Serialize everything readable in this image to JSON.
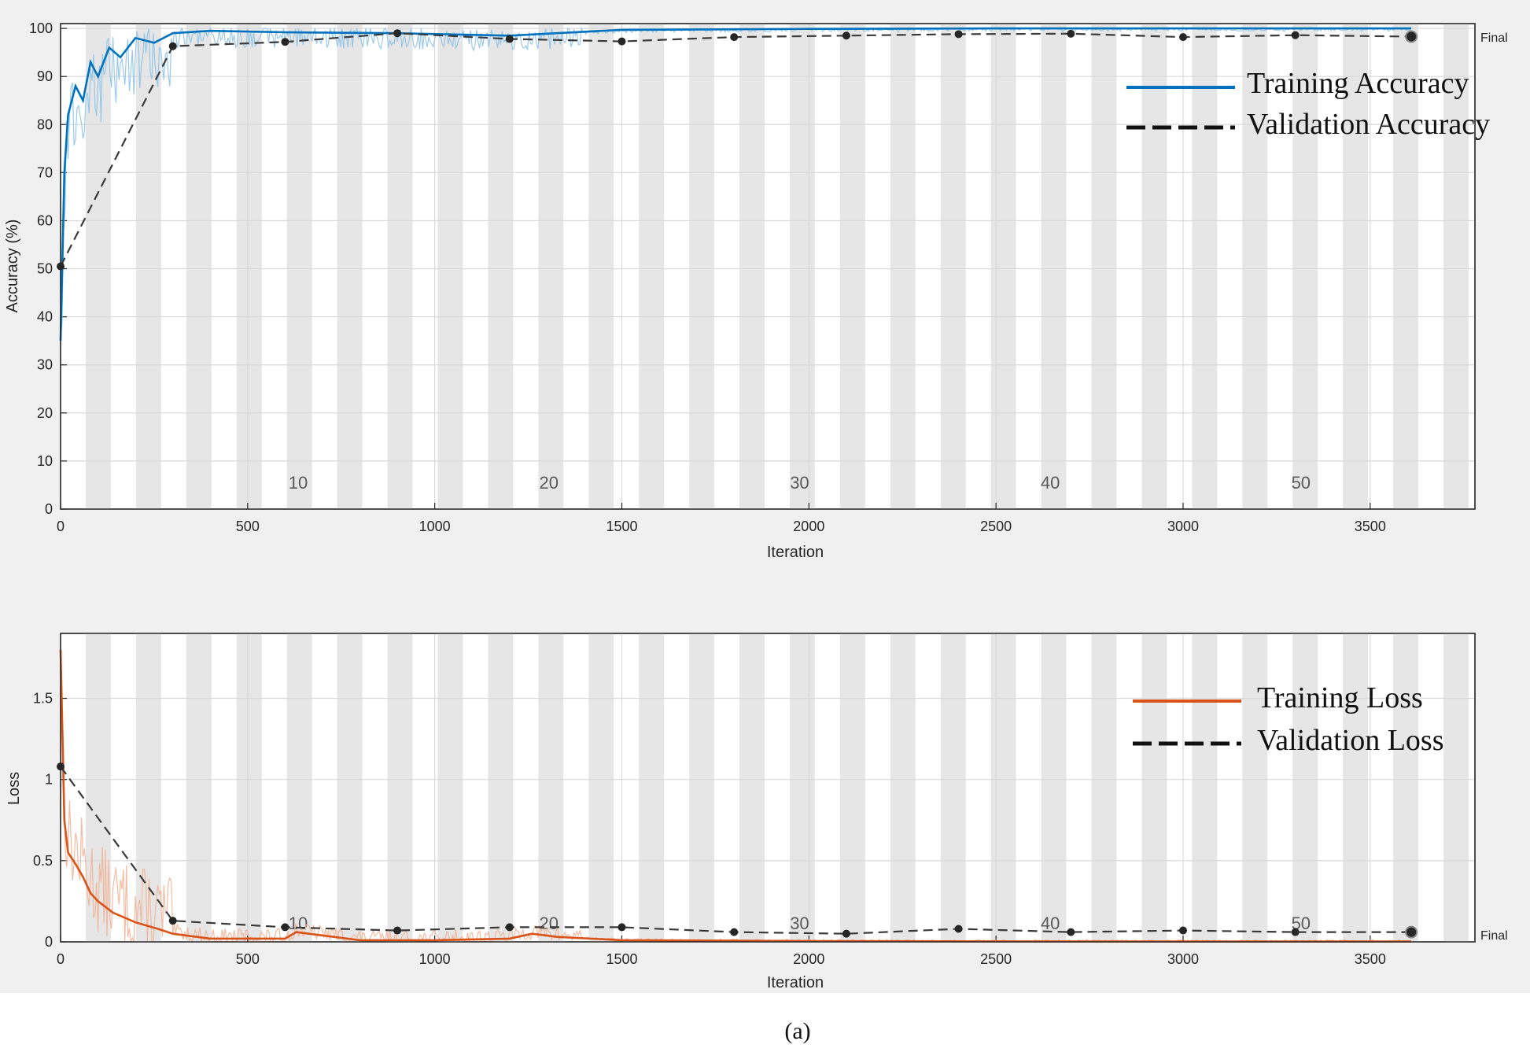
{
  "caption": "(a)",
  "colors": {
    "training_accuracy": "#0072bd",
    "training_accuracy_raw": "#8fc3e8",
    "training_loss": "#d95319",
    "training_loss_raw": "#f2b497",
    "validation": "#3a3a3a",
    "validation_marker": "#262626"
  },
  "chart_data": [
    {
      "type": "line",
      "name": "accuracy-chart",
      "xlabel": "Iteration",
      "ylabel": "Accuracy (%)",
      "xlim": [
        0,
        3780
      ],
      "ylim": [
        0,
        101
      ],
      "xticks": [
        0,
        500,
        1000,
        1500,
        2000,
        2500,
        3000,
        3500
      ],
      "yticks": [
        0,
        10,
        20,
        30,
        40,
        50,
        60,
        70,
        80,
        90,
        100
      ],
      "epoch_labels": [
        {
          "iteration": 635,
          "label": "10"
        },
        {
          "iteration": 1305,
          "label": "20"
        },
        {
          "iteration": 1975,
          "label": "30"
        },
        {
          "iteration": 2645,
          "label": "40"
        },
        {
          "iteration": 3315,
          "label": "50"
        }
      ],
      "epoch_band_period": 67.2,
      "final_label": "Final",
      "final_iteration": 3610,
      "legend": {
        "position": "top-right",
        "entries": [
          "Training Accuracy",
          "Validation Accuracy"
        ]
      },
      "series": [
        {
          "name": "Training Accuracy",
          "style": "solid",
          "x": [
            0,
            10,
            20,
            40,
            60,
            80,
            100,
            130,
            160,
            200,
            250,
            300,
            400,
            600,
            900,
            1200,
            1500,
            2000,
            2500,
            3000,
            3610
          ],
          "y": [
            35,
            70,
            82,
            88,
            85,
            93,
            90,
            96,
            94,
            98,
            97,
            99,
            99.5,
            99.2,
            99,
            98.5,
            99.7,
            99.9,
            100,
            100,
            100
          ]
        },
        {
          "name": "Validation Accuracy",
          "style": "dashed",
          "markers": true,
          "x": [
            0,
            300,
            600,
            900,
            1200,
            1500,
            1800,
            2100,
            2400,
            2700,
            3000,
            3300,
            3610
          ],
          "y": [
            50.5,
            96.3,
            97.2,
            99.0,
            97.8,
            97.3,
            98.2,
            98.5,
            98.8,
            98.9,
            98.2,
            98.6,
            98.3
          ]
        }
      ]
    },
    {
      "type": "line",
      "name": "loss-chart",
      "xlabel": "Iteration",
      "ylabel": "Loss",
      "xlim": [
        0,
        3780
      ],
      "ylim": [
        0,
        1.9
      ],
      "xticks": [
        0,
        500,
        1000,
        1500,
        2000,
        2500,
        3000,
        3500
      ],
      "yticks": [
        0,
        0.5,
        1,
        1.5
      ],
      "ytick_labels": [
        "0",
        "0.5",
        "1",
        "1.5"
      ],
      "epoch_labels": [
        {
          "iteration": 635,
          "label": "10"
        },
        {
          "iteration": 1305,
          "label": "20"
        },
        {
          "iteration": 1975,
          "label": "30"
        },
        {
          "iteration": 2645,
          "label": "40"
        },
        {
          "iteration": 3315,
          "label": "50"
        }
      ],
      "epoch_band_period": 67.2,
      "final_label": "Final",
      "final_iteration": 3610,
      "legend": {
        "position": "top-right",
        "entries": [
          "Training Loss",
          "Validation Loss"
        ]
      },
      "series": [
        {
          "name": "Training Loss",
          "style": "solid",
          "x": [
            0,
            10,
            20,
            40,
            60,
            80,
            100,
            140,
            200,
            260,
            300,
            400,
            600,
            630,
            800,
            1000,
            1200,
            1260,
            1330,
            1500,
            2000,
            2500,
            3000,
            3610
          ],
          "y": [
            1.8,
            0.75,
            0.55,
            0.48,
            0.4,
            0.3,
            0.25,
            0.18,
            0.12,
            0.08,
            0.05,
            0.02,
            0.02,
            0.06,
            0.01,
            0.01,
            0.02,
            0.05,
            0.03,
            0.01,
            0.005,
            0.003,
            0.002,
            0.002
          ]
        },
        {
          "name": "Validation Loss",
          "style": "dashed",
          "markers": true,
          "x": [
            0,
            300,
            600,
            900,
            1200,
            1500,
            1800,
            2100,
            2400,
            2700,
            3000,
            3300,
            3610
          ],
          "y": [
            1.08,
            0.13,
            0.09,
            0.07,
            0.09,
            0.09,
            0.06,
            0.05,
            0.08,
            0.06,
            0.07,
            0.06,
            0.06
          ]
        }
      ]
    }
  ]
}
